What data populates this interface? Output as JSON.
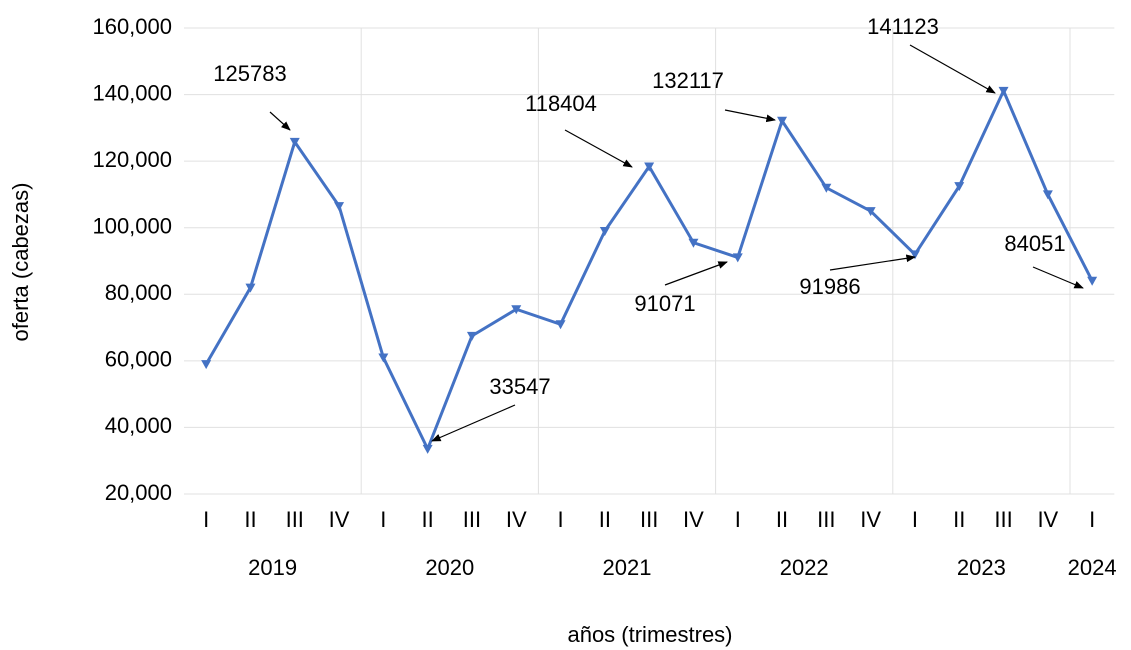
{
  "chart_data": {
    "type": "line",
    "x_label": "años (trimestres)",
    "y_label": "oferta (cabezas)",
    "categories": [
      "I",
      "II",
      "III",
      "IV",
      "I",
      "II",
      "III",
      "IV",
      "I",
      "II",
      "III",
      "IV",
      "I",
      "II",
      "III",
      "IV",
      "I",
      "II",
      "III",
      "IV",
      "I"
    ],
    "groups": [
      {
        "label": "2019",
        "count": 4
      },
      {
        "label": "2020",
        "count": 4
      },
      {
        "label": "2021",
        "count": 4
      },
      {
        "label": "2022",
        "count": 4
      },
      {
        "label": "2023",
        "count": 4
      },
      {
        "label": "2024",
        "count": 1
      }
    ],
    "series": [
      {
        "color": "#4472c4",
        "values": [
          59000,
          82000,
          125783,
          106500,
          61000,
          33547,
          67500,
          75500,
          71000,
          99000,
          118404,
          95500,
          91071,
          132117,
          112000,
          105000,
          91986,
          112500,
          141123,
          110000,
          84051
        ]
      }
    ],
    "annotations": [
      {
        "index": 2
      },
      {
        "index": 5
      },
      {
        "index": 10
      },
      {
        "index": 12
      },
      {
        "index": 13
      },
      {
        "index": 16
      },
      {
        "index": 18
      },
      {
        "index": 20
      }
    ],
    "ylim": [
      20000,
      160000
    ],
    "yticks": [
      {
        "value": 20000,
        "label": "20,000"
      },
      {
        "value": 40000,
        "label": "40,000"
      },
      {
        "value": 60000,
        "label": "60,000"
      },
      {
        "value": 80000,
        "label": "80,000"
      },
      {
        "value": 100000,
        "label": "100,000"
      },
      {
        "value": 120000,
        "label": "120,000"
      },
      {
        "value": 140000,
        "label": "140,000"
      },
      {
        "value": 160000,
        "label": "160,000"
      }
    ],
    "grid": true
  }
}
